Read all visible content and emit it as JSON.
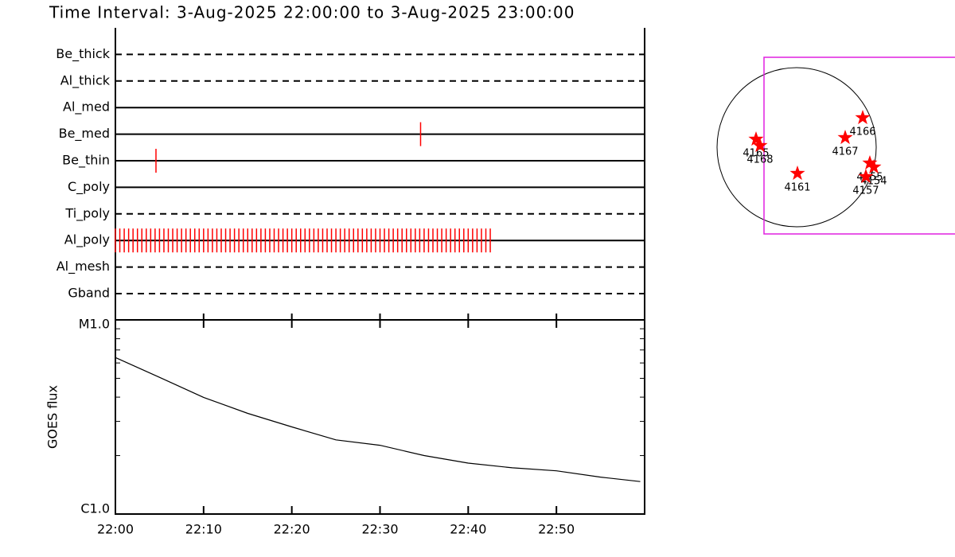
{
  "chart_data": [
    {
      "type": "timeline",
      "title": "Time Interval:  3-Aug-2025 22:00:00 to  3-Aug-2025 23:00:00",
      "categories": [
        "Be_thick",
        "Al_thick",
        "Al_med",
        "Be_med",
        "Be_thin",
        "C_poly",
        "Ti_poly",
        "Al_poly",
        "Al_mesh",
        "Gband"
      ],
      "line_styles": [
        "dashed",
        "dashed",
        "solid",
        "solid",
        "solid",
        "solid",
        "dashed",
        "solid",
        "dashed",
        "dashed"
      ],
      "color": "#ff0000",
      "xlim": [
        0,
        60
      ],
      "events": [
        [],
        [],
        [],
        [
          34.6
        ],
        [
          4.6
        ],
        [],
        [],
        [
          0,
          0.5,
          1,
          1.5,
          2,
          2.5,
          3,
          3.5,
          4,
          4.5,
          5,
          5.5,
          6,
          6.5,
          7,
          7.5,
          8,
          8.5,
          9,
          9.5,
          10,
          10.5,
          11,
          11.5,
          12,
          12.5,
          13,
          13.5,
          14,
          14.5,
          15,
          15.5,
          16,
          16.5,
          17,
          17.5,
          18,
          18.5,
          19,
          19.5,
          20,
          20.5,
          21,
          21.5,
          22,
          22.5,
          23,
          23.5,
          24,
          24.5,
          25,
          25.5,
          26,
          26.5,
          27,
          27.5,
          28,
          28.5,
          29,
          29.5,
          30,
          30.5,
          31,
          31.5,
          32,
          32.5,
          33,
          33.5,
          34,
          34.5,
          35,
          35.5,
          36,
          36.5,
          37,
          37.5,
          38,
          38.5,
          39,
          39.5,
          40,
          40.5,
          41,
          41.5,
          42,
          42.5
        ],
        [],
        []
      ]
    },
    {
      "type": "line",
      "ylabel": "GOES flux",
      "log_scale": true,
      "color": "#000000",
      "x": [
        0,
        5,
        10,
        15,
        20,
        25,
        30,
        35,
        40,
        45,
        50,
        55,
        59.5
      ],
      "values": [
        6.4e-06,
        5.06e-06,
        3.99e-06,
        3.3e-06,
        2.81e-06,
        2.41e-06,
        2.26e-06,
        2e-06,
        1.83e-06,
        1.73e-06,
        1.67e-06,
        1.55e-06,
        1.47e-06
      ],
      "xlim": [
        0,
        60
      ],
      "xticks": [
        {
          "value": 0,
          "label": "22:00"
        },
        {
          "value": 10,
          "label": "22:10"
        },
        {
          "value": 20,
          "label": "22:20"
        },
        {
          "value": 30,
          "label": "22:30"
        },
        {
          "value": 40,
          "label": "22:40"
        },
        {
          "value": 50,
          "label": "22:50"
        }
      ],
      "ylim": [
        1e-06,
        1e-05
      ],
      "yticks": [
        {
          "value": 1e-06,
          "label": "C1.0"
        },
        {
          "value": 1e-05,
          "label": "M1.0"
        }
      ],
      "yminorticks": [
        2e-06,
        3e-06,
        4e-06,
        5e-06,
        6e-06,
        7e-06,
        8e-06,
        9e-06
      ]
    },
    {
      "type": "scatter",
      "color": "#ff0000",
      "points": [
        {
          "label": "4165",
          "x": -490,
          "y": 96
        },
        {
          "label": "4168",
          "x": -442,
          "y": 19
        },
        {
          "label": "4166",
          "x": 797,
          "y": 355
        },
        {
          "label": "4167",
          "x": 586,
          "y": 115
        },
        {
          "label": "4161",
          "x": 10,
          "y": -317
        },
        {
          "label": "4155",
          "x": 883,
          "y": -192
        },
        {
          "label": "4154",
          "x": 931,
          "y": -240
        },
        {
          "label": "4157",
          "x": 835,
          "y": -355
        }
      ]
    }
  ]
}
